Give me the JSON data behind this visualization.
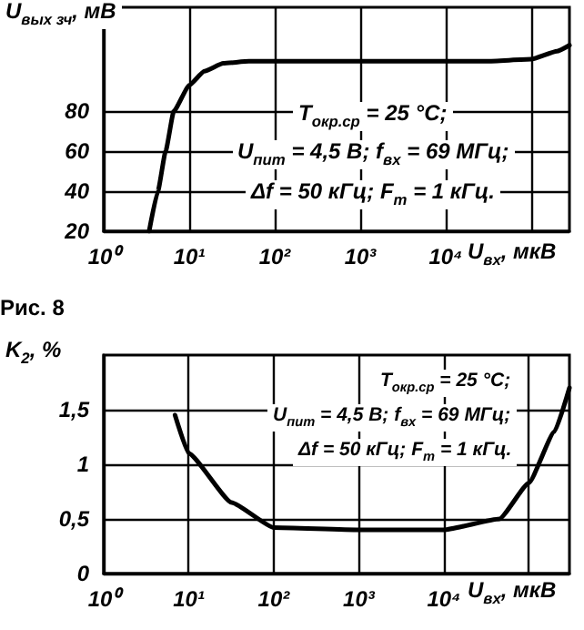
{
  "chart_data": [
    {
      "type": "line",
      "ylabel": "U$_{вых зч}$, мВ",
      "xlabel": "U$_{вх}$, мкВ",
      "log": "x",
      "grid": true,
      "marker": "none",
      "annotations": [
        "T$_{окр.ср}$ = 25 °C;",
        "U$_{пит}$ = 4,5 В; f$_{вх}$ = 69 МГц;",
        "Δf = 50 кГц; F$_{m}$ = 1 кГц.",
        "Рис. 8"
      ],
      "xlim": [
        1,
        280000
      ],
      "xticks": [
        {
          "value": 1,
          "label": "10⁰"
        },
        {
          "value": 10,
          "label": "10¹"
        },
        {
          "value": 100,
          "label": "10²"
        },
        {
          "value": 1000,
          "label": "10³"
        },
        {
          "value": 10000,
          "label": "10⁴"
        },
        {
          "value": 100000,
          "label": null
        }
      ],
      "ylim": [
        20,
        132
      ],
      "yticks": [
        20,
        40,
        60,
        80
      ],
      "series": [
        {
          "color": "#000000",
          "x": [
            3.4,
            4.3,
            5.3,
            6.6,
            10,
            15,
            25,
            50,
            1000,
            30000,
            100000,
            200000,
            280000
          ],
          "values": [
            20,
            40,
            60,
            80,
            93,
            100,
            104,
            105,
            105,
            105,
            106,
            110,
            113
          ]
        }
      ]
    },
    {
      "type": "line",
      "ylabel": "K$_{2}$, %",
      "xlabel": "U$_{вх}$, мкВ",
      "log": "x",
      "grid": true,
      "marker": "none",
      "annotations": [
        "T$_{окр.ср}$ = 25 °C;",
        "U$_{пит}$ = 4,5 В; f$_{вх}$ = 69 МГц;",
        "Δf = 50 кГц; F$_{m}$ = 1 кГц."
      ],
      "xlim": [
        1,
        300000
      ],
      "xticks": [
        {
          "value": 1,
          "label": "10⁰"
        },
        {
          "value": 10,
          "label": "10¹"
        },
        {
          "value": 100,
          "label": "10²"
        },
        {
          "value": 1000,
          "label": "10³"
        },
        {
          "value": 10000,
          "label": "10⁴"
        },
        {
          "value": 100000,
          "label": null
        }
      ],
      "ylim": [
        0,
        2
      ],
      "yticks": [
        {
          "value": 0,
          "label": "0"
        },
        {
          "value": 0.5,
          "label": "0,5"
        },
        {
          "value": 1,
          "label": "1"
        },
        {
          "value": 1.5,
          "label": "1,5"
        }
      ],
      "series": [
        {
          "color": "#000000",
          "x": [
            6.9,
            10,
            32,
            100,
            1000,
            10000,
            45000,
            100000,
            200000,
            300000
          ],
          "values": [
            1.45,
            1.1,
            0.65,
            0.42,
            0.4,
            0.4,
            0.5,
            0.83,
            1.3,
            1.7
          ]
        }
      ]
    }
  ]
}
